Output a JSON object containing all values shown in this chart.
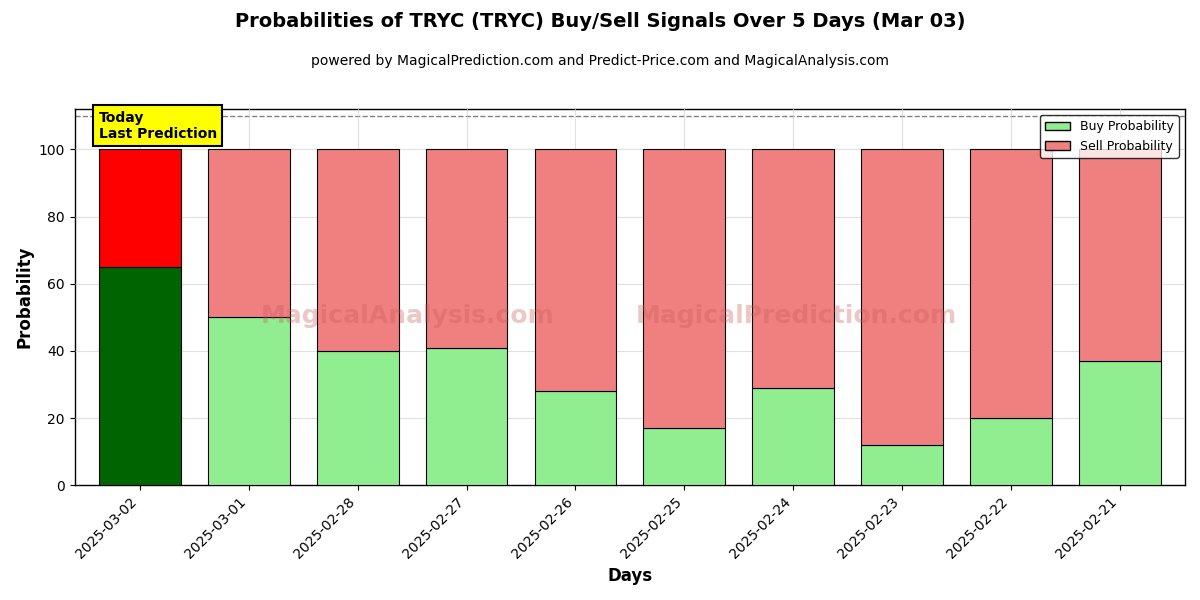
{
  "title": "Probabilities of TRYC (TRYC) Buy/Sell Signals Over 5 Days (Mar 03)",
  "subtitle": "powered by MagicalPrediction.com and Predict-Price.com and MagicalAnalysis.com",
  "xlabel": "Days",
  "ylabel": "Probability",
  "dates": [
    "2025-03-02",
    "2025-03-01",
    "2025-02-28",
    "2025-02-27",
    "2025-02-26",
    "2025-02-25",
    "2025-02-24",
    "2025-02-23",
    "2025-02-22",
    "2025-02-21"
  ],
  "buy_values": [
    65,
    50,
    40,
    41,
    28,
    17,
    29,
    12,
    20,
    37
  ],
  "sell_values": [
    35,
    50,
    60,
    59,
    72,
    83,
    71,
    88,
    80,
    63
  ],
  "today_buy_color": "#006400",
  "today_sell_color": "#ff0000",
  "buy_color": "#90EE90",
  "sell_color": "#F08080",
  "bar_edgecolor": "#000000",
  "today_label_bg": "#ffff00",
  "today_label_text": "Today\nLast Prediction",
  "ylim": [
    0,
    112
  ],
  "dashed_line_y": 110,
  "watermark_lines": [
    "MagicalAnalysis.com",
    "MagicalPrediction.com"
  ],
  "legend_buy": "Buy Probability",
  "legend_sell": "Sell Probability",
  "fig_width": 12,
  "fig_height": 6,
  "title_fontsize": 14,
  "subtitle_fontsize": 10,
  "axis_label_fontsize": 12,
  "tick_fontsize": 10,
  "bg_color": "#f0f0f0"
}
